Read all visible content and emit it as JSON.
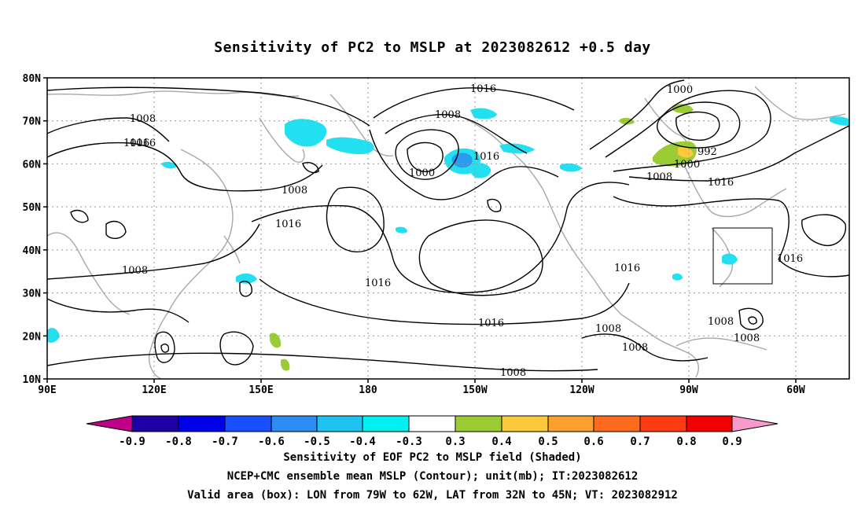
{
  "title": "Sensitivity of PC2 to MSLP at 2023082612 +0.5 day",
  "lat_labels": [
    "80N",
    "70N",
    "60N",
    "50N",
    "40N",
    "30N",
    "20N",
    "10N"
  ],
  "lon_labels": [
    "90E",
    "120E",
    "150E",
    "180",
    "150W",
    "120W",
    "90W",
    "60W"
  ],
  "contour_labels": [
    "1016",
    "1008",
    "1016",
    "1008",
    "1016",
    "1008",
    "1000",
    "1016",
    "1000",
    "992",
    "1000",
    "1008",
    "1016",
    "1016",
    "1016",
    "1016",
    "1008",
    "1016",
    "1016",
    "1008",
    "1008",
    "1008",
    "1008",
    "1008"
  ],
  "colorbar": {
    "tick_labels": [
      "-0.9",
      "-0.8",
      "-0.7",
      "-0.6",
      "-0.5",
      "-0.4",
      "-0.3",
      "0.3",
      "0.4",
      "0.5",
      "0.6",
      "0.7",
      "0.8",
      "0.9"
    ],
    "colors": [
      "#c1008a",
      "#1d00a6",
      "#0000e8",
      "#1a4fff",
      "#2c8cf2",
      "#1fc3f2",
      "#00f0f0",
      "#ffffff",
      "#9ccc34",
      "#fdc93a",
      "#fd9f2d",
      "#fd6b1d",
      "#fd3a12",
      "#f20000",
      "#f89bcc"
    ]
  },
  "shading_colors": {
    "neg": "#22e0f0",
    "neg_dark": "#2a9cf0",
    "pos": "#9ccc34",
    "pos2": "#fdc93a"
  },
  "box": {
    "lon_from": "79W",
    "lon_to": "62W",
    "lat_from": "32N",
    "lat_to": "45N"
  },
  "captions": [
    "Sensitivity of EOF PC2 to MSLP field (Shaded)",
    "NCEP+CMC ensemble mean MSLP (Contour); unit(mb); IT:2023082612",
    "Valid area (box): LON from 79W to 62W, LAT from 32N to 45N; VT: 2023082912"
  ]
}
